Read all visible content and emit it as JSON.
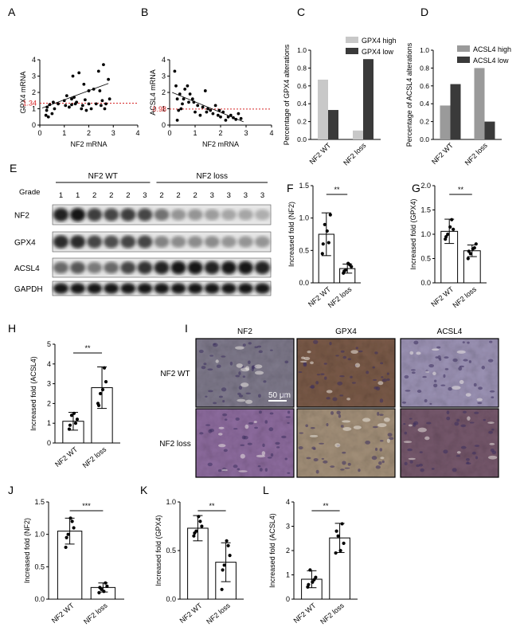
{
  "figure": {
    "panels": {
      "A": "A",
      "B": "B",
      "C": "C",
      "D": "D",
      "E": "E",
      "F": "F",
      "G": "G",
      "H": "H",
      "I": "I",
      "J": "J",
      "K": "K",
      "L": "L"
    }
  },
  "chart_data": [
    {
      "id": "A",
      "type": "scatter",
      "xlabel": "NF2 mRNA",
      "ylabel": "GPX4 mRNA",
      "xlim": [
        0,
        4
      ],
      "ylim": [
        0,
        4
      ],
      "xticks": [
        0,
        1,
        2,
        3,
        4
      ],
      "yticks": [
        0,
        1,
        2,
        3,
        4
      ],
      "threshold": 1.34,
      "threshold_label": "1.34",
      "threshold_color": "#d62728",
      "trend": [
        [
          0.1,
          1.05
        ],
        [
          2.8,
          2.55
        ]
      ],
      "points": [
        [
          0.25,
          0.6
        ],
        [
          0.28,
          0.9
        ],
        [
          0.3,
          1.1
        ],
        [
          0.35,
          0.5
        ],
        [
          0.4,
          1.25
        ],
        [
          0.5,
          0.7
        ],
        [
          0.55,
          1.4
        ],
        [
          0.6,
          1.0
        ],
        [
          0.75,
          1.3
        ],
        [
          1.0,
          1.5
        ],
        [
          1.05,
          1.2
        ],
        [
          1.1,
          1.8
        ],
        [
          1.2,
          1.1
        ],
        [
          1.3,
          1.25
        ],
        [
          1.3,
          1.6
        ],
        [
          1.35,
          3.0
        ],
        [
          1.4,
          1.7
        ],
        [
          1.45,
          1.3
        ],
        [
          1.5,
          1.4
        ],
        [
          1.6,
          3.2
        ],
        [
          1.7,
          1.0
        ],
        [
          1.75,
          1.2
        ],
        [
          1.8,
          2.5
        ],
        [
          1.85,
          1.55
        ],
        [
          1.9,
          0.9
        ],
        [
          2.0,
          2.1
        ],
        [
          2.0,
          1.3
        ],
        [
          2.1,
          1.0
        ],
        [
          2.2,
          2.2
        ],
        [
          2.3,
          1.3
        ],
        [
          2.4,
          3.3
        ],
        [
          2.45,
          2.1
        ],
        [
          2.5,
          1.2
        ],
        [
          2.55,
          1.5
        ],
        [
          2.6,
          3.7
        ],
        [
          2.65,
          1.0
        ],
        [
          2.7,
          1.3
        ],
        [
          2.8,
          2.8
        ],
        [
          2.85,
          1.6
        ]
      ]
    },
    {
      "id": "B",
      "type": "scatter",
      "xlabel": "NF2 mRNA",
      "ylabel": "ACSL4 mRNA",
      "xlim": [
        0,
        4
      ],
      "ylim": [
        0,
        4
      ],
      "xticks": [
        0,
        1,
        2,
        3,
        4
      ],
      "yticks": [
        0,
        1,
        2,
        3,
        4
      ],
      "threshold": 0.98,
      "threshold_label": "0.98",
      "threshold_color": "#d62728",
      "trend": [
        [
          0.1,
          2.0
        ],
        [
          2.9,
          0.2
        ]
      ],
      "points": [
        [
          0.2,
          3.3
        ],
        [
          0.25,
          2.4
        ],
        [
          0.3,
          1.6
        ],
        [
          0.3,
          0.3
        ],
        [
          0.35,
          0.9
        ],
        [
          0.4,
          1.9
        ],
        [
          0.45,
          1.0
        ],
        [
          0.5,
          1.3
        ],
        [
          0.55,
          1.6
        ],
        [
          0.6,
          2.2
        ],
        [
          0.7,
          2.4
        ],
        [
          0.75,
          1.4
        ],
        [
          0.8,
          1.9
        ],
        [
          0.9,
          1.6
        ],
        [
          0.95,
          1.4
        ],
        [
          1.0,
          0.8
        ],
        [
          1.1,
          1.2
        ],
        [
          1.2,
          0.6
        ],
        [
          1.3,
          1.1
        ],
        [
          1.4,
          2.1
        ],
        [
          1.45,
          0.8
        ],
        [
          1.5,
          1.0
        ],
        [
          1.6,
          0.9
        ],
        [
          1.7,
          0.7
        ],
        [
          1.8,
          1.2
        ],
        [
          1.9,
          0.6
        ],
        [
          1.95,
          0.9
        ],
        [
          2.0,
          0.5
        ],
        [
          2.1,
          0.8
        ],
        [
          2.2,
          0.3
        ],
        [
          2.3,
          0.5
        ],
        [
          2.4,
          0.6
        ],
        [
          2.5,
          0.45
        ],
        [
          2.6,
          0.35
        ],
        [
          2.7,
          0.7
        ],
        [
          2.8,
          0.4
        ]
      ]
    },
    {
      "id": "C",
      "type": "bar",
      "ylabel": "Percentage of GPX4 alterations",
      "categories": [
        "NF2 WT",
        "NF2 loss"
      ],
      "series": [
        {
          "name": "GPX4 high",
          "values": [
            0.67,
            0.1
          ],
          "color": "#c8c8c8"
        },
        {
          "name": "GPX4 low",
          "values": [
            0.33,
            0.9
          ],
          "color": "#3a3a3a"
        }
      ],
      "ylim": [
        0,
        1.0
      ],
      "yticks": [
        "0.0",
        "0.2",
        "0.4",
        "0.6",
        "0.8",
        "1.0"
      ],
      "legend": "top-right"
    },
    {
      "id": "D",
      "type": "bar",
      "ylabel": "Percentage of ACSL4 alterations",
      "categories": [
        "NF2 WT",
        "NF2 loss"
      ],
      "series": [
        {
          "name": "ACSL4 high",
          "values": [
            0.38,
            0.8
          ],
          "color": "#9a9a9a"
        },
        {
          "name": "ACSL4 low",
          "values": [
            0.62,
            0.2
          ],
          "color": "#3a3a3a"
        }
      ],
      "ylim": [
        0,
        1.0
      ],
      "yticks": [
        "0.0",
        "0.2",
        "0.4",
        "0.6",
        "0.8",
        "1.0"
      ],
      "legend": "top-right"
    },
    {
      "id": "F",
      "type": "bar",
      "ylabel": "Increased fold (NF2)",
      "categories": [
        "NF2 WT",
        "NF2 loss"
      ],
      "means": [
        0.75,
        0.22
      ],
      "sd": [
        0.33,
        0.07
      ],
      "ylim": [
        0,
        1.5
      ],
      "yticks": [
        "0.0",
        "0.5",
        "1.0",
        "1.5"
      ],
      "significance": "**",
      "points": [
        [
          0.45,
          0.62,
          0.9,
          1.05,
          0.6,
          0.8
        ],
        [
          0.15,
          0.28,
          0.2,
          0.25,
          0.18,
          0.3
        ]
      ]
    },
    {
      "id": "G",
      "type": "bar",
      "ylabel": "Increased fold (GPX4)",
      "categories": [
        "NF2 WT",
        "NF2 loss"
      ],
      "means": [
        1.06,
        0.66
      ],
      "sd": [
        0.25,
        0.12
      ],
      "ylim": [
        0,
        2.0
      ],
      "yticks": [
        "0.0",
        "0.5",
        "1.0",
        "1.5",
        "2.0"
      ],
      "significance": "**",
      "points": [
        [
          0.9,
          1.3,
          1.0,
          1.1,
          0.95,
          1.15
        ],
        [
          0.5,
          0.72,
          0.6,
          0.8,
          0.65,
          0.7
        ]
      ]
    },
    {
      "id": "H",
      "type": "bar",
      "ylabel": "Increased fold (ACSL4)",
      "categories": [
        "NF2 WT",
        "NF2 loss"
      ],
      "means": [
        1.1,
        2.8
      ],
      "sd": [
        0.45,
        1.05
      ],
      "ylim": [
        0,
        5
      ],
      "yticks": [
        "0",
        "1",
        "2",
        "3",
        "4",
        "5"
      ],
      "significance": "**",
      "points": [
        [
          0.7,
          1.0,
          1.4,
          1.2,
          0.9,
          1.5
        ],
        [
          2.0,
          3.8,
          2.5,
          3.1,
          1.9,
          2.7
        ]
      ]
    },
    {
      "id": "J",
      "type": "bar",
      "ylabel": "Increased fold (NF2)",
      "categories": [
        "NF2 WT",
        "NF2 loss"
      ],
      "means": [
        1.05,
        0.18
      ],
      "sd": [
        0.2,
        0.07
      ],
      "ylim": [
        0,
        1.5
      ],
      "yticks": [
        "0.0",
        "0.5",
        "1.0",
        "1.5"
      ],
      "significance": "***",
      "points": [
        [
          0.8,
          1.2,
          1.0,
          1.1,
          0.95,
          1.25
        ],
        [
          0.1,
          0.25,
          0.15,
          0.2,
          0.18,
          0.12
        ]
      ]
    },
    {
      "id": "K",
      "type": "bar",
      "ylabel": "Increased fold (GPX4)",
      "categories": [
        "NF2 WT",
        "NF2 loss"
      ],
      "means": [
        0.73,
        0.38
      ],
      "sd": [
        0.13,
        0.2
      ],
      "ylim": [
        0,
        1.0
      ],
      "yticks": [
        "0.0",
        "0.5",
        "1.0"
      ],
      "significance": "**",
      "points": [
        [
          0.65,
          0.8,
          0.7,
          0.75,
          0.68,
          0.85
        ],
        [
          0.1,
          0.55,
          0.35,
          0.45,
          0.3,
          0.6
        ]
      ]
    },
    {
      "id": "L",
      "type": "bar",
      "ylabel": "Increased fold (ACSL4)",
      "categories": [
        "NF2 WT",
        "NF2 loss"
      ],
      "means": [
        0.82,
        2.52
      ],
      "sd": [
        0.35,
        0.6
      ],
      "ylim": [
        0,
        4
      ],
      "yticks": [
        "0",
        "1",
        "2",
        "3",
        "4"
      ],
      "significance": "**",
      "points": [
        [
          0.5,
          0.8,
          1.2,
          0.9,
          0.6,
          0.7
        ],
        [
          1.9,
          3.1,
          2.6,
          2.3,
          2.8,
          2.0
        ]
      ]
    }
  ],
  "western_blot": {
    "group_labels": [
      "NF2 WT",
      "NF2 loss"
    ],
    "grade_label": "Grade",
    "grades": [
      "1",
      "1",
      "2",
      "2",
      "2",
      "3",
      "2",
      "2",
      "2",
      "3",
      "3",
      "3",
      "3"
    ],
    "rows": [
      {
        "label": "NF2",
        "intensities": [
          0.95,
          1.0,
          0.8,
          0.75,
          0.8,
          0.75,
          0.5,
          0.3,
          0.3,
          0.25,
          0.2,
          0.2,
          0.15
        ]
      },
      {
        "label": "GPX4",
        "intensities": [
          0.9,
          0.9,
          0.75,
          0.7,
          0.75,
          0.75,
          0.4,
          0.35,
          0.35,
          0.35,
          0.3,
          0.3,
          0.3
        ]
      },
      {
        "label": "ACSL4",
        "intensities": [
          0.55,
          0.65,
          0.45,
          0.55,
          0.75,
          0.85,
          0.95,
          1.0,
          1.0,
          0.95,
          1.0,
          1.0,
          0.95
        ]
      },
      {
        "label": "GAPDH",
        "intensities": [
          1,
          1,
          1,
          1,
          1,
          1,
          1,
          1,
          1,
          1,
          1,
          1,
          1
        ]
      }
    ]
  },
  "ihc": {
    "columns": [
      "NF2",
      "GPX4",
      "ACSL4"
    ],
    "rows": [
      "NF2 WT",
      "NF2 loss"
    ],
    "scale_bar": "50 μm",
    "tile_colors": [
      [
        "#7f7a8c",
        "#7a5a48",
        "#9c93b5"
      ],
      [
        "#8e6c9f",
        "#a39079",
        "#76586c"
      ]
    ]
  }
}
